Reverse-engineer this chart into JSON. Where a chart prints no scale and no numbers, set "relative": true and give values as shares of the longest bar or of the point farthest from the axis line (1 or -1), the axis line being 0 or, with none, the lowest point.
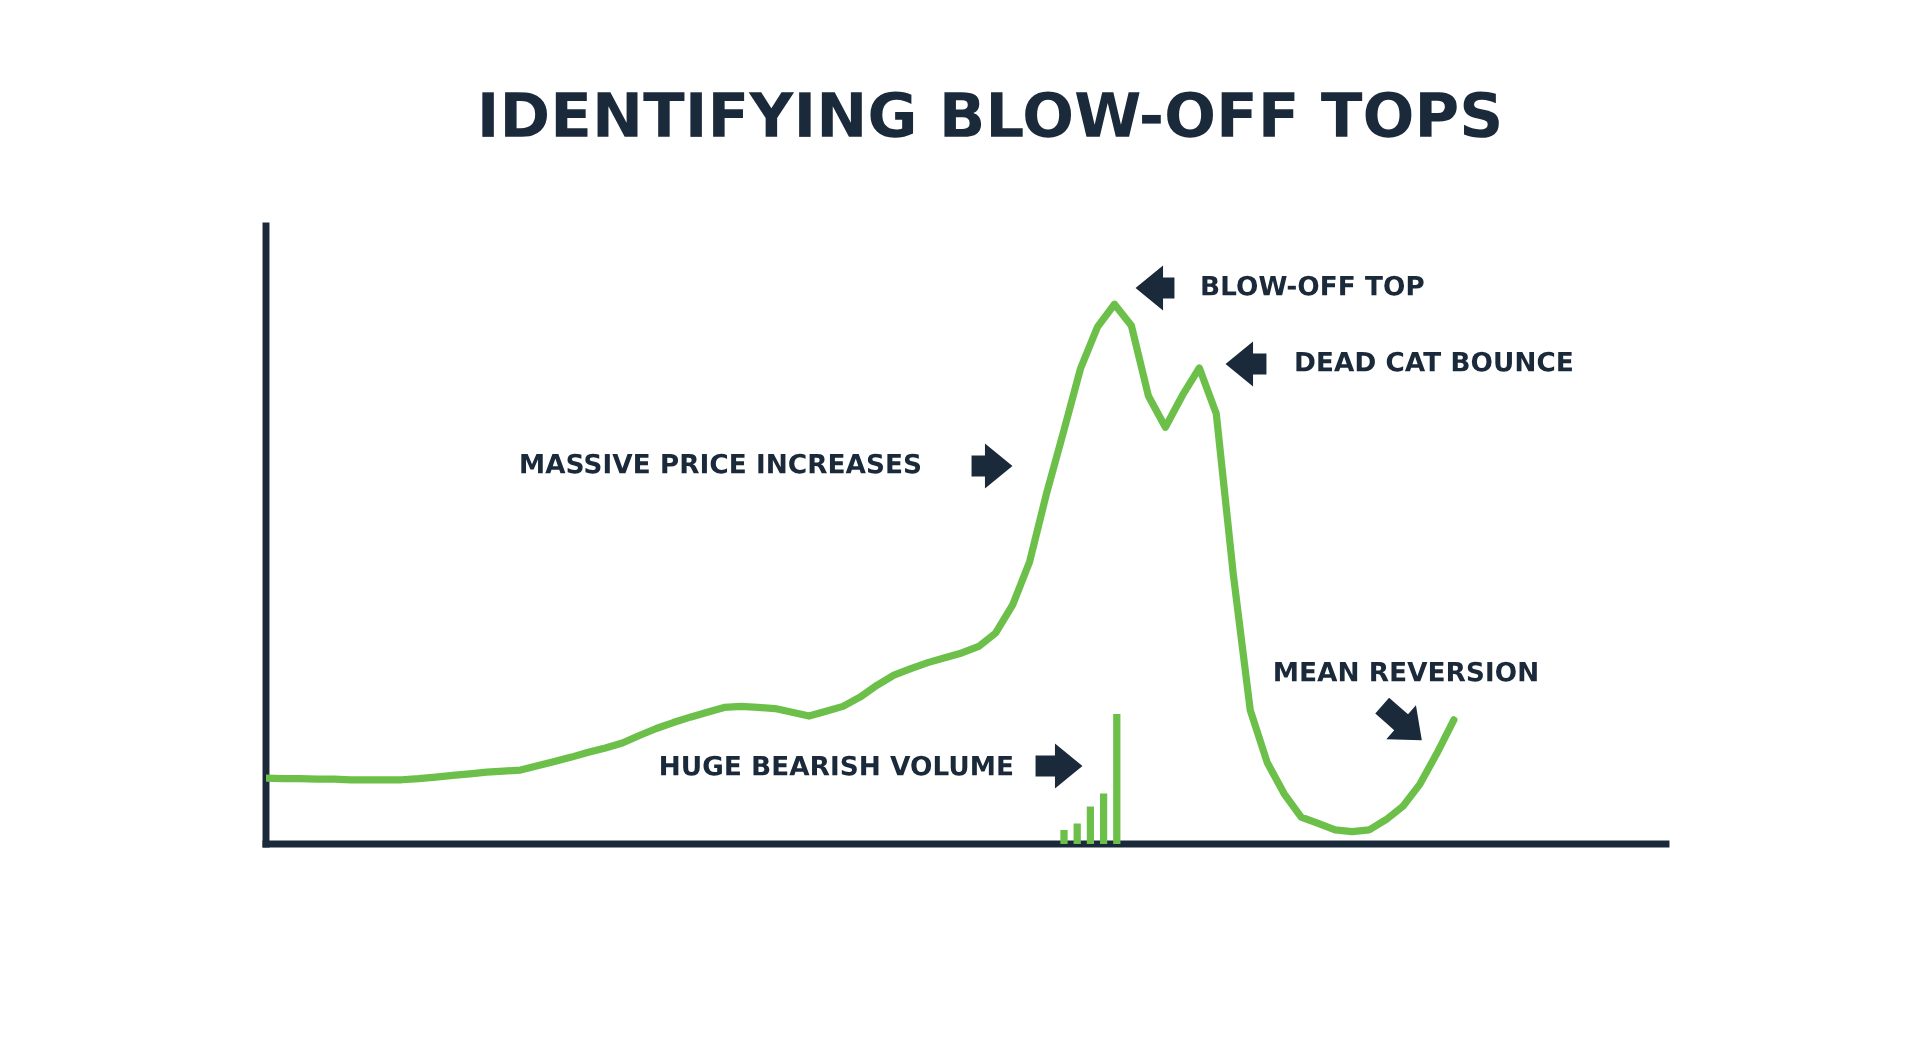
{
  "chart_data": [
    {
      "type": "line",
      "title": "IDENTIFYING BLOW-OFF TOPS",
      "relative": true,
      "marker": "none",
      "line_style": "solid",
      "categories": [
        null,
        null,
        null,
        null,
        null,
        null,
        null,
        null,
        null,
        null,
        null,
        null,
        null,
        null,
        null,
        null,
        null,
        null,
        null,
        null,
        null,
        null,
        null,
        null,
        null,
        null,
        null,
        null,
        null,
        null,
        null,
        null,
        null,
        null,
        null,
        null,
        null,
        null,
        null,
        null,
        null,
        null,
        null,
        null,
        null,
        null,
        null,
        null,
        null,
        null,
        null,
        null,
        null,
        null,
        null,
        null,
        null,
        null,
        null,
        null,
        null,
        null,
        null,
        null,
        null,
        null,
        null,
        null,
        null,
        null,
        null,
        null,
        null,
        null,
        null,
        null,
        null,
        null,
        null,
        null,
        null,
        null,
        null
      ],
      "series": [
        {
          "color": "#6cc04a",
          "values": [
            0.122,
            0.121,
            0.121,
            0.12,
            0.12,
            0.119,
            0.119,
            0.119,
            0.119,
            0.121,
            0.124,
            0.127,
            0.13,
            0.133,
            0.135,
            0.137,
            0.145,
            0.153,
            0.161,
            0.17,
            0.178,
            0.187,
            0.201,
            0.214,
            0.225,
            0.235,
            0.244,
            0.253,
            0.255,
            0.253,
            0.251,
            0.244,
            0.237,
            0.246,
            0.255,
            0.272,
            0.294,
            0.313,
            0.325,
            0.336,
            0.345,
            0.354,
            0.366,
            0.391,
            0.443,
            0.523,
            0.65,
            0.764,
            0.881,
            0.958,
            1.0,
            0.96,
            0.83,
            0.772,
            0.831,
            0.882,
            0.797,
            0.5,
            0.248,
            0.151,
            0.093,
            0.05,
            0.038,
            0.026,
            0.023,
            0.026,
            0.045,
            0.07,
            0.111,
            0.168,
            0.23,
            null,
            null,
            null,
            null,
            null,
            null,
            null,
            null,
            null,
            null,
            null,
            null
          ]
        }
      ],
      "annotations": [
        "BLOW-OFF TOP",
        "DEAD CAT BOUNCE",
        "MASSIVE PRICE INCREASES",
        "HUGE BEARISH VOLUME",
        "MEAN REVERSION"
      ]
    },
    {
      "type": "bar",
      "relative": true,
      "categories": [
        null,
        null,
        null,
        null,
        null
      ],
      "series": [
        {
          "color": "#6cc04a",
          "values": [
            0.107,
            0.157,
            0.289,
            0.388,
            1.0
          ]
        }
      ]
    }
  ]
}
